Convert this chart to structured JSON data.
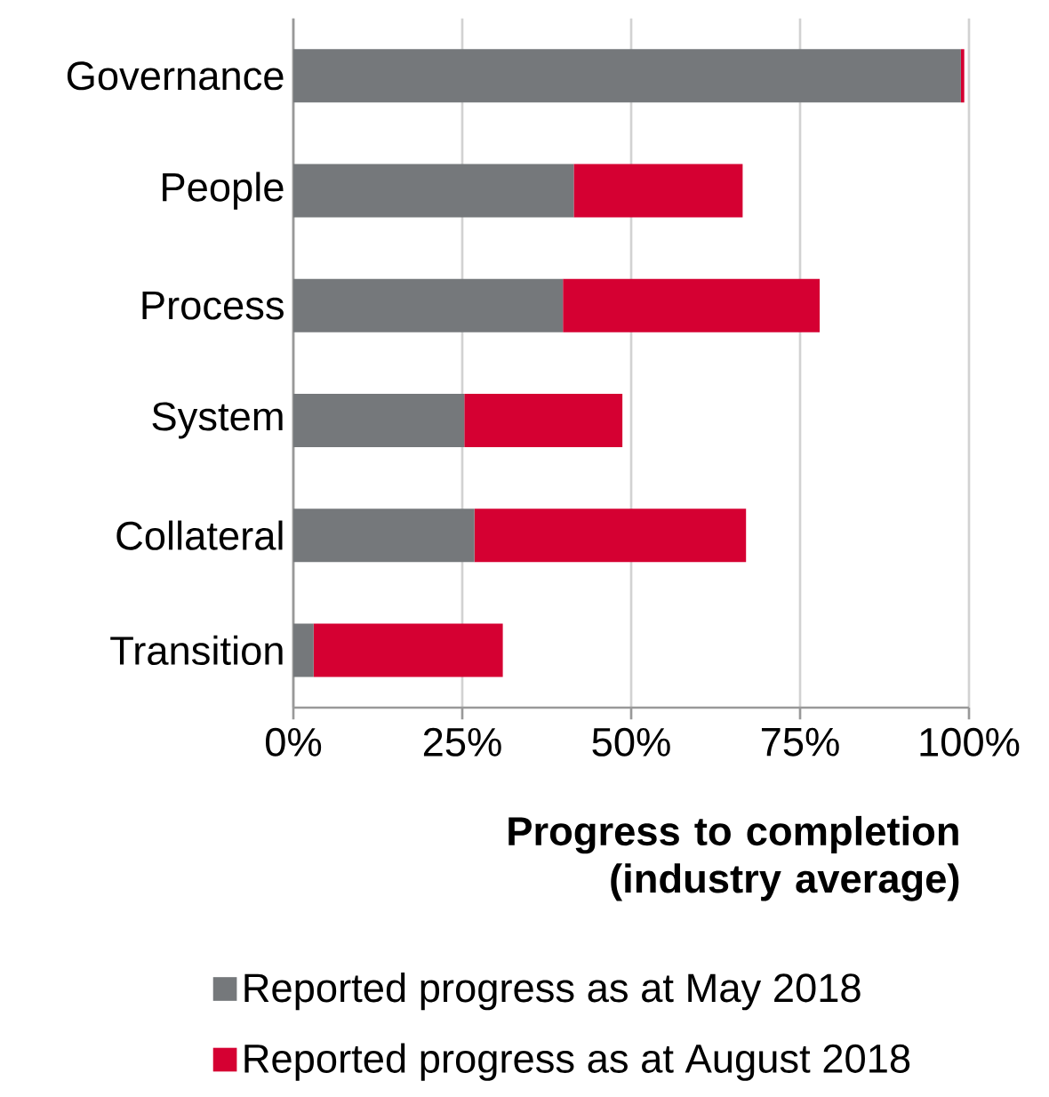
{
  "chart_data": {
    "type": "bar",
    "orientation": "horizontal",
    "stacked": true,
    "categories": [
      "Governance",
      "People",
      "Process",
      "System",
      "Collateral",
      "Transition"
    ],
    "series": [
      {
        "name": "Reported progress as at May 2018",
        "color": "#75787b",
        "values": [
          98.8,
          41.5,
          39.9,
          25.3,
          26.8,
          3.0
        ]
      },
      {
        "name": "Reported progress as at August 2018",
        "color": "#d50032",
        "values": [
          0.5,
          25.0,
          38.0,
          23.4,
          40.2,
          28.0
        ]
      }
    ],
    "xlim": [
      0,
      100
    ],
    "xticks": [
      {
        "value": 0,
        "label": "0%"
      },
      {
        "value": 25,
        "label": "25%"
      },
      {
        "value": 50,
        "label": "50%"
      },
      {
        "value": 75,
        "label": "75%"
      },
      {
        "value": 100,
        "label": "100%"
      }
    ],
    "xlabel": "Progress to completion (industry average)",
    "grid": "x",
    "legend": "bottom"
  }
}
